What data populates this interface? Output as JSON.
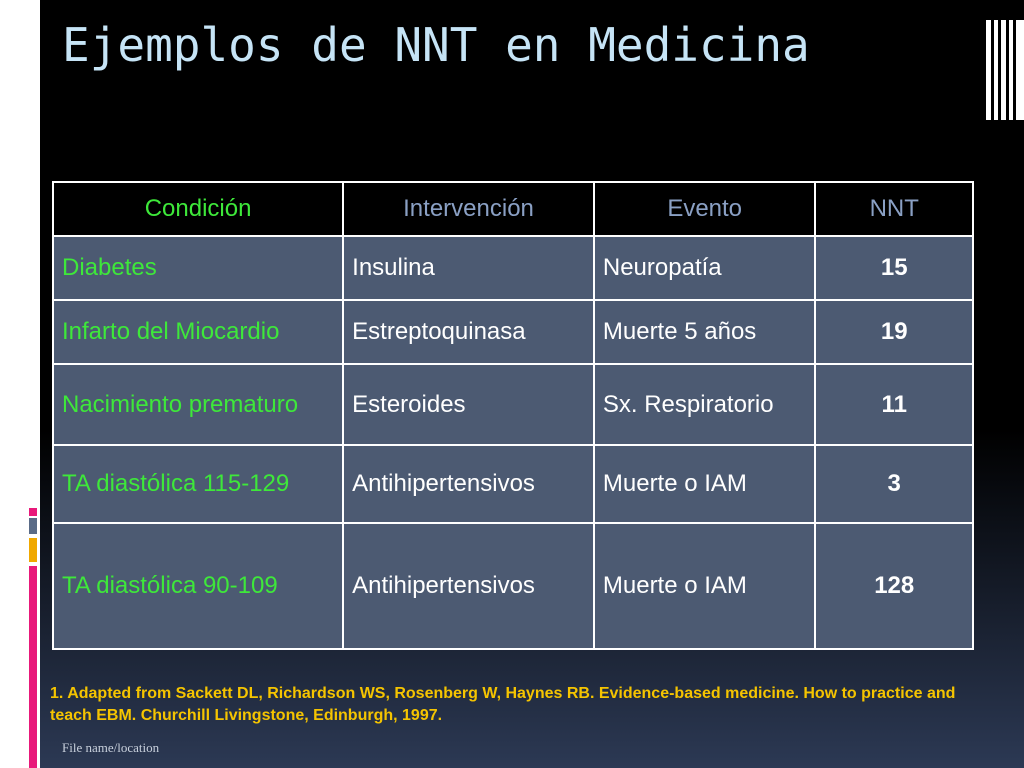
{
  "title": "Ejemplos de NNT en Medicina",
  "table": {
    "headers": [
      "Condición",
      "Intervención",
      "Evento",
      "NNT"
    ],
    "rows": [
      {
        "condicion": "Diabetes",
        "intervencion": "Insulina",
        "evento": "Neuropatía",
        "nnt": "15"
      },
      {
        "condicion": "Infarto del Miocardio",
        "intervencion": "Estreptoquinasa",
        "evento": "Muerte  5 años",
        "nnt": "19"
      },
      {
        "condicion": "Nacimiento prematuro",
        "intervencion": "Esteroides",
        "evento": "Sx. Respiratorio",
        "nnt": "11"
      },
      {
        "condicion": "TA diastólica 115-129",
        "intervencion": "Antihipertensivos",
        "evento": "Muerte o IAM",
        "nnt": "3"
      },
      {
        "condicion": "TA diastólica 90-109",
        "intervencion": "Antihipertensivos",
        "evento": "Muerte o IAM",
        "nnt": "128"
      }
    ]
  },
  "footnote": "1. Adapted from Sackett DL, Richardson WS, Rosenberg W, Haynes RB. Evidence-based medicine. How to practice and teach EBM. Churchill Livingstone, Edinburgh, 1997.",
  "footer": "File name/location",
  "colors": {
    "title": "#c6e4f6",
    "condition_text": "#3ee83a",
    "header_text": "#8aa0c4",
    "cell_bg": "#4c5a72",
    "footnote": "#f5c400",
    "accent_pink": "#e8197a",
    "accent_gold": "#f0a800"
  }
}
